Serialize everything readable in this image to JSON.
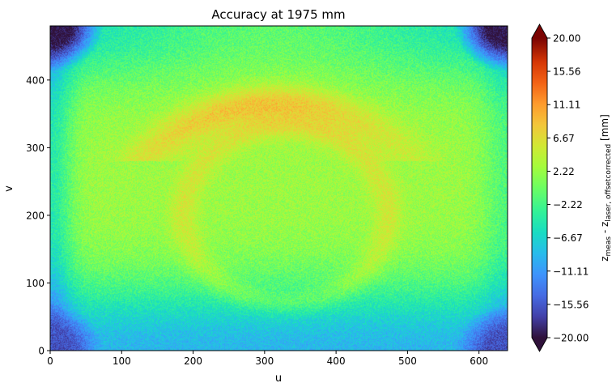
{
  "chart_data": {
    "type": "heatmap",
    "title": "Accuracy at 1975 mm",
    "xlabel": "u",
    "ylabel": "v",
    "xlim": [
      0,
      640
    ],
    "ylim": [
      0,
      480
    ],
    "xticks": [
      0,
      100,
      200,
      300,
      400,
      500,
      600
    ],
    "yticks": [
      0,
      100,
      200,
      300,
      400
    ],
    "colorbar": {
      "label_main": "z",
      "label_sub1": "meas",
      "label_mid": " - z",
      "label_sub2": "laser, offsetcorrected",
      "label_unit": " [mm]",
      "range": [
        -20,
        20
      ],
      "ticks": [
        "20.00",
        "15.56",
        "11.11",
        "6.67",
        "2.22",
        "−2.22",
        "−6.67",
        "−11.11",
        "−15.56",
        "−20.00"
      ],
      "tick_values": [
        20,
        15.56,
        11.11,
        6.67,
        2.22,
        -2.22,
        -6.67,
        -11.11,
        -15.56,
        -20
      ],
      "colormap": "turbo",
      "extend": "both"
    },
    "pattern": {
      "description_values_mm": {
        "background": 2.5,
        "bottom_band": -9,
        "bottom_corners": -16,
        "top_corners": -20,
        "upper_orange_arc": 9,
        "ring": 7,
        "left_edge": -6,
        "right_edge": -4
      }
    }
  }
}
